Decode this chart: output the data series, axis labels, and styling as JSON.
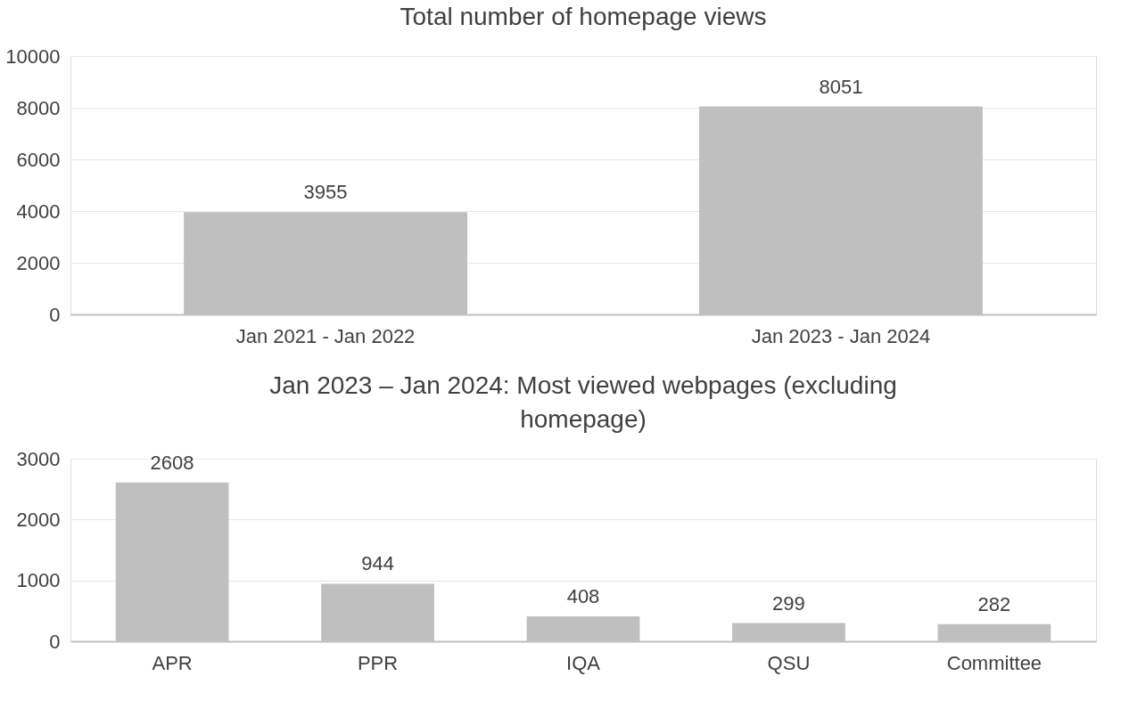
{
  "chart_data": [
    {
      "type": "bar",
      "title": "Total number of homepage views",
      "categories": [
        "Jan 2021 - Jan 2022",
        "Jan 2023 - Jan 2024"
      ],
      "values": [
        3955,
        8051
      ],
      "color": "#bfbfbf",
      "ylim": [
        0,
        10000
      ],
      "yticks": [
        0,
        2000,
        4000,
        6000,
        8000,
        10000
      ],
      "grid": "y",
      "data_labels": true
    },
    {
      "type": "bar",
      "title": "Jan 2023 – Jan 2024: Most viewed webpages (excluding homepage)",
      "categories": [
        "APR",
        "PPR",
        "IQA",
        "QSU",
        "Committee"
      ],
      "values": [
        2608,
        944,
        408,
        299,
        282
      ],
      "color": "#bfbfbf",
      "ylim": [
        0,
        3000
      ],
      "yticks": [
        0,
        1000,
        2000,
        3000
      ],
      "grid": "y",
      "data_labels": true
    }
  ]
}
